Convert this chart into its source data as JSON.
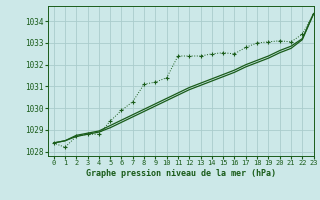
{
  "title": "Graphe pression niveau de la mer (hPa)",
  "bg_color": "#cce8e8",
  "grid_color": "#aacccc",
  "line_color": "#1a5c1a",
  "marker_color": "#1a5c1a",
  "xlim": [
    -0.5,
    23
  ],
  "ylim": [
    1027.8,
    1034.7
  ],
  "xticks": [
    0,
    1,
    2,
    3,
    4,
    5,
    6,
    7,
    8,
    9,
    10,
    11,
    12,
    13,
    14,
    15,
    16,
    17,
    18,
    19,
    20,
    21,
    22,
    23
  ],
  "yticks": [
    1028,
    1029,
    1030,
    1031,
    1032,
    1033,
    1034
  ],
  "series_zigzag": {
    "x": [
      0,
      1,
      2,
      3,
      4,
      5,
      6,
      7,
      8,
      9,
      10,
      11,
      12,
      13,
      14,
      15,
      16,
      17,
      18,
      19,
      20,
      21,
      22,
      23
    ],
    "y": [
      1028.4,
      1028.2,
      1028.7,
      1028.8,
      1028.8,
      1029.4,
      1029.9,
      1030.3,
      1031.1,
      1031.2,
      1031.4,
      1032.4,
      1032.4,
      1032.4,
      1032.5,
      1032.55,
      1032.5,
      1032.8,
      1033.0,
      1033.05,
      1033.1,
      1033.05,
      1033.4,
      1034.35
    ]
  },
  "series_linear1": {
    "x": [
      0,
      1,
      2,
      3,
      4,
      5,
      6,
      7,
      8,
      9,
      10,
      11,
      12,
      13,
      14,
      15,
      16,
      17,
      18,
      19,
      20,
      21,
      22,
      23
    ],
    "y": [
      1028.4,
      1028.5,
      1028.7,
      1028.8,
      1028.9,
      1029.1,
      1029.35,
      1029.6,
      1029.85,
      1030.1,
      1030.35,
      1030.6,
      1030.85,
      1031.05,
      1031.25,
      1031.45,
      1031.65,
      1031.9,
      1032.1,
      1032.3,
      1032.55,
      1032.75,
      1033.15,
      1034.35
    ]
  },
  "series_linear2": {
    "x": [
      0,
      1,
      2,
      3,
      4,
      5,
      6,
      7,
      8,
      9,
      10,
      11,
      12,
      13,
      14,
      15,
      16,
      17,
      18,
      19,
      20,
      21,
      22,
      23
    ],
    "y": [
      1028.4,
      1028.5,
      1028.75,
      1028.85,
      1028.95,
      1029.2,
      1029.45,
      1029.7,
      1029.95,
      1030.2,
      1030.45,
      1030.7,
      1030.95,
      1031.15,
      1031.35,
      1031.55,
      1031.75,
      1032.0,
      1032.2,
      1032.4,
      1032.65,
      1032.85,
      1033.2,
      1034.35
    ]
  }
}
